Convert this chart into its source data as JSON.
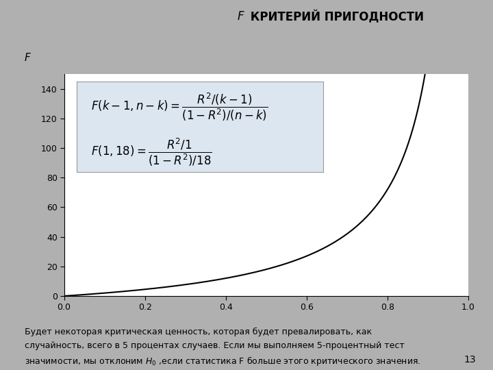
{
  "title_italic_F": "F",
  "title_rest": " КРИТЕРИЙ ПРИГОДНОСТИ",
  "xlim": [
    0,
    1.0
  ],
  "ylim": [
    0,
    150
  ],
  "yticks": [
    0,
    20,
    40,
    60,
    80,
    100,
    120,
    140
  ],
  "xticks": [
    0,
    0.2,
    0.4,
    0.6,
    0.8,
    1
  ],
  "background_color": "#b0b0b0",
  "plot_area_bg": "#ffffff",
  "formula_box_bg": "#dce6f1",
  "line_color": "#000000",
  "footer_line1": "Будет некоторая критическая ценность, которая будет превалировать, как",
  "footer_line2": "случайность, всего в 5 процентах случаев. Если мы выполняем 5-процентный тест",
  "footer_line3": "значимости, мы отклоним $H_0$ ,если статистика F больше этого критического значения.",
  "page_number": "13"
}
